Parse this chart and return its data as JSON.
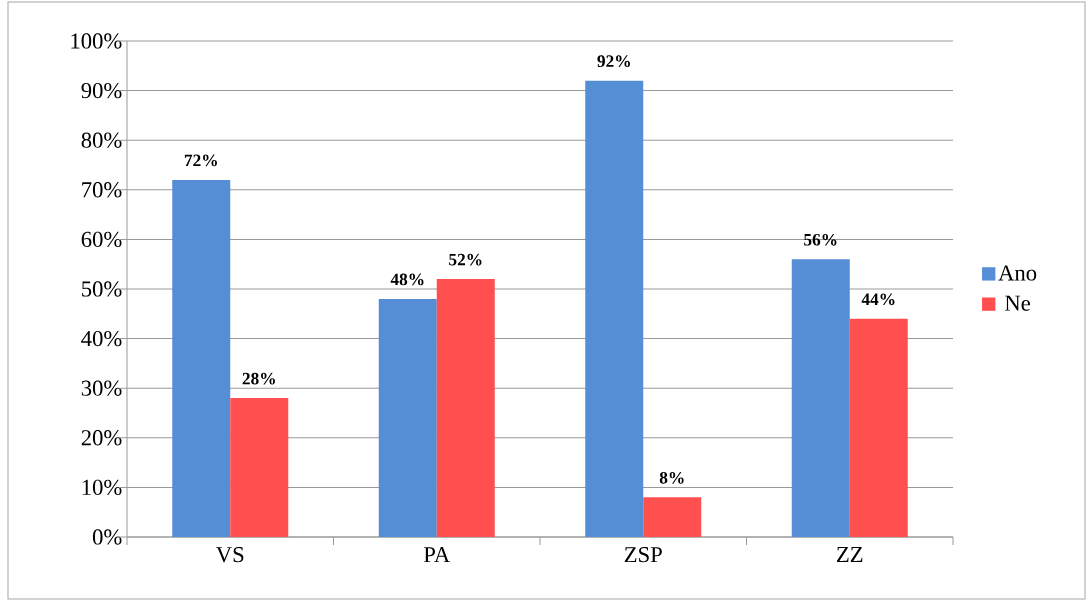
{
  "chart_data": {
    "type": "bar",
    "categories": [
      "VS",
      "PA",
      "ZSP",
      "ZZ"
    ],
    "series": [
      {
        "name": "Ano",
        "color": "#558ed5",
        "values": [
          72,
          48,
          92,
          56
        ],
        "value_labels": [
          "72%",
          "48%",
          "92%",
          "56%"
        ]
      },
      {
        "name": "Ne",
        "color": "#ff4f4f",
        "values": [
          28,
          52,
          8,
          44
        ],
        "value_labels": [
          "28%",
          "52%",
          "8%",
          "44%"
        ]
      }
    ],
    "ylim": [
      0,
      100
    ],
    "yticks": [
      {
        "value": 0,
        "label": "0%"
      },
      {
        "value": 10,
        "label": "10%"
      },
      {
        "value": 20,
        "label": "20%"
      },
      {
        "value": 30,
        "label": "30%"
      },
      {
        "value": 40,
        "label": "40%"
      },
      {
        "value": 50,
        "label": "50%"
      },
      {
        "value": 60,
        "label": "60%"
      },
      {
        "value": 70,
        "label": "70%"
      },
      {
        "value": 80,
        "label": "80%"
      },
      {
        "value": 90,
        "label": "90%"
      },
      {
        "value": 100,
        "label": "100%"
      }
    ],
    "grid": "y",
    "legend": "right"
  }
}
